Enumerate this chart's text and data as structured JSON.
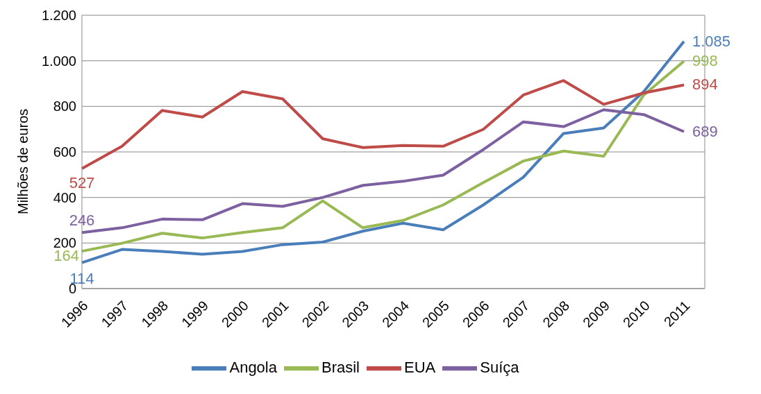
{
  "chart_data": {
    "type": "line",
    "ylabel": "Milhões de euros",
    "categories": [
      "1996",
      "1997",
      "1998",
      "1999",
      "2000",
      "2001",
      "2002",
      "2003",
      "2004",
      "2005",
      "2006",
      "2007",
      "2008",
      "2009",
      "2010",
      "2011"
    ],
    "series": [
      {
        "name": "Angola",
        "color": "#4a7ebb",
        "values": [
          114,
          172,
          163,
          151,
          163,
          193,
          204,
          252,
          287,
          258,
          367,
          489,
          681,
          705,
          865,
          1085
        ],
        "value_labels": [
          "114",
          null,
          null,
          null,
          null,
          null,
          null,
          null,
          null,
          null,
          null,
          null,
          null,
          null,
          null,
          "1.085"
        ]
      },
      {
        "name": "Brasil",
        "color": "#98b954",
        "values": [
          164,
          199,
          243,
          222,
          246,
          267,
          385,
          267,
          299,
          367,
          465,
          560,
          604,
          581,
          850,
          998
        ],
        "value_labels": [
          "164",
          null,
          null,
          null,
          null,
          null,
          null,
          null,
          null,
          null,
          null,
          null,
          null,
          null,
          null,
          "998"
        ]
      },
      {
        "name": "EUA",
        "color": "#be4b48",
        "values": [
          527,
          625,
          782,
          753,
          865,
          833,
          658,
          619,
          628,
          625,
          699,
          850,
          913,
          809,
          859,
          894
        ],
        "value_labels": [
          "527",
          null,
          null,
          null,
          null,
          null,
          null,
          null,
          null,
          null,
          null,
          null,
          null,
          null,
          null,
          "894"
        ]
      },
      {
        "name": "Suíça",
        "color": "#7d60a0",
        "values": [
          246,
          267,
          305,
          302,
          373,
          361,
          400,
          453,
          471,
          498,
          610,
          732,
          711,
          785,
          764,
          689
        ],
        "value_labels": [
          "246",
          null,
          null,
          null,
          null,
          null,
          null,
          null,
          null,
          null,
          null,
          null,
          null,
          null,
          null,
          "689"
        ]
      }
    ],
    "ylim": [
      0,
      1200
    ],
    "yticks": [
      0,
      200,
      400,
      600,
      800,
      {
        "value": 1000,
        "label": "1.000"
      },
      {
        "value": 1200,
        "label": "1.200"
      }
    ],
    "grid": "y",
    "legend": "bottom",
    "marker": "none",
    "line_style": "solid"
  }
}
